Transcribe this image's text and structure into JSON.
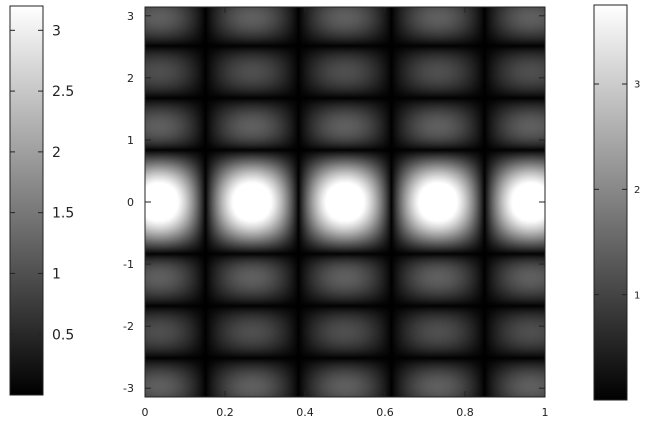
{
  "chart_data": [
    {
      "type": "heatmap",
      "title": "",
      "xlabel": "",
      "ylabel": "",
      "xlim": [
        0,
        1
      ],
      "ylim": [
        -3.14159,
        3.14159
      ],
      "x_ticks": [
        "0",
        "0.2",
        "0.4",
        "0.6",
        "0.8",
        "1"
      ],
      "x_tick_values": [
        0,
        0.2,
        0.4,
        0.6,
        0.8,
        1
      ],
      "y_ticks": [
        "-3",
        "-2",
        "-1",
        "0",
        "1",
        "2",
        "3"
      ],
      "y_tick_values": [
        -3,
        -2,
        -1,
        0,
        1,
        2,
        3
      ],
      "colormap": "grayscale",
      "description_of_pattern": "periodic diagonal interference lattice, symmetric about x = 0.5"
    },
    {
      "type": "colorbar",
      "name": "left",
      "range": [
        0,
        3.2
      ],
      "tick_labels": [
        "0.5",
        "1",
        "1.5",
        "2",
        "2.5",
        "3"
      ],
      "tick_values": [
        0.5,
        1,
        1.5,
        2,
        2.5,
        3
      ]
    },
    {
      "type": "colorbar",
      "name": "right",
      "range": [
        0,
        3.75
      ],
      "tick_labels": [
        "1",
        "2",
        "3"
      ],
      "tick_values": [
        1,
        2,
        3
      ]
    }
  ],
  "colors": {
    "axis": "#222222",
    "low": "#000000",
    "high": "#ffffff"
  }
}
